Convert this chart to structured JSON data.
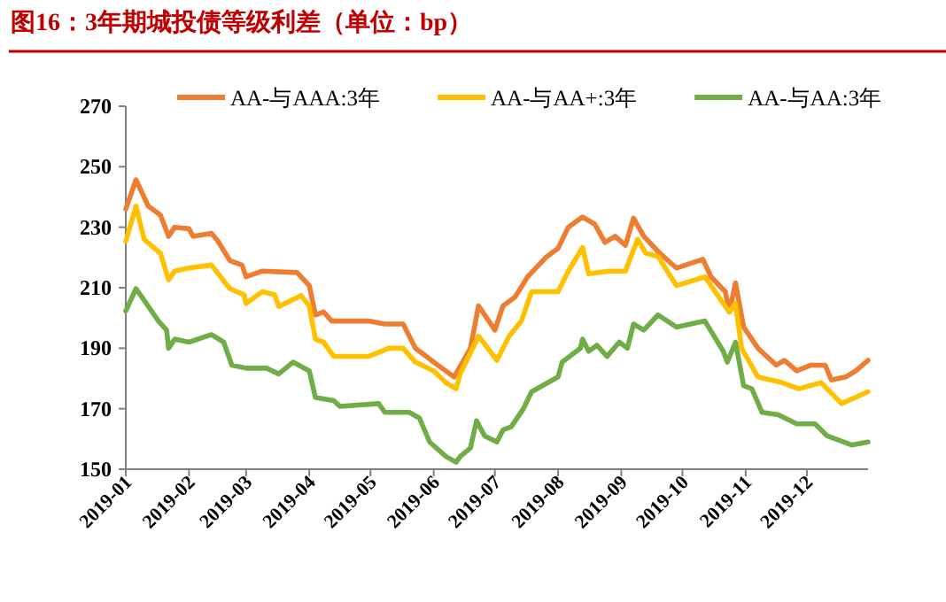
{
  "chart_data": {
    "type": "line",
    "title": "图16：3年期城投债等级利差（单位：bp）",
    "legend": "top",
    "marker": "none",
    "line_style": "solid",
    "grid": false,
    "xlim": [
      "2019-01-01",
      "2019-12-31"
    ],
    "xticks": [
      {
        "value": "2019-01-01",
        "label": "2019-01"
      },
      {
        "value": "2019-02-01",
        "label": "2019-02"
      },
      {
        "value": "2019-03-01",
        "label": "2019-03"
      },
      {
        "value": "2019-04-01",
        "label": "2019-04"
      },
      {
        "value": "2019-05-01",
        "label": "2019-05"
      },
      {
        "value": "2019-06-01",
        "label": "2019-06"
      },
      {
        "value": "2019-07-01",
        "label": "2019-07"
      },
      {
        "value": "2019-08-01",
        "label": "2019-08"
      },
      {
        "value": "2019-09-01",
        "label": "2019-09"
      },
      {
        "value": "2019-10-01",
        "label": "2019-10"
      },
      {
        "value": "2019-11-01",
        "label": "2019-11"
      },
      {
        "value": "2019-12-01",
        "label": "2019-12"
      }
    ],
    "ylim": [
      150,
      270
    ],
    "yticks": [
      150,
      170,
      190,
      210,
      230,
      250,
      270
    ],
    "series": [
      {
        "name": "AA-与AAA:3年",
        "color": "#ed7d31",
        "x": [
          "2019-01-01",
          "2019-01-06",
          "2019-01-12",
          "2019-01-18",
          "2019-01-22",
          "2019-01-25",
          "2019-02-01",
          "2019-02-03",
          "2019-02-12",
          "2019-02-15",
          "2019-02-21",
          "2019-02-27",
          "2019-03-01",
          "2019-03-09",
          "2019-03-26",
          "2019-04-01",
          "2019-04-04",
          "2019-04-08",
          "2019-04-12",
          "2019-04-30",
          "2019-05-08",
          "2019-05-17",
          "2019-05-23",
          "2019-06-01",
          "2019-06-11",
          "2019-06-19",
          "2019-06-23",
          "2019-07-01",
          "2019-07-05",
          "2019-07-11",
          "2019-07-17",
          "2019-07-26",
          "2019-08-01",
          "2019-08-06",
          "2019-08-13",
          "2019-08-19",
          "2019-08-24",
          "2019-08-29",
          "2019-09-03",
          "2019-09-07",
          "2019-09-12",
          "2019-09-19",
          "2019-09-28",
          "2019-10-11",
          "2019-10-15",
          "2019-10-22",
          "2019-10-24",
          "2019-10-27",
          "2019-10-31",
          "2019-11-07",
          "2019-11-16",
          "2019-11-20",
          "2019-11-26",
          "2019-12-03",
          "2019-12-10",
          "2019-12-13",
          "2019-12-20",
          "2019-12-25",
          "2019-12-31"
        ],
        "values": [
          236,
          245.7,
          237,
          234,
          227,
          230,
          229.5,
          227,
          228,
          225.6,
          219,
          217.5,
          213.6,
          215.5,
          215,
          210.7,
          201,
          202,
          199,
          199,
          198,
          198,
          190,
          185.4,
          180.5,
          190,
          204,
          196,
          204,
          207,
          213.6,
          220,
          223,
          230,
          233.4,
          231,
          225,
          227,
          224,
          233,
          227,
          222,
          216.5,
          219.4,
          213.6,
          208.7,
          202,
          211.6,
          197,
          190,
          184.4,
          186,
          182.5,
          184.4,
          184.4,
          179.5,
          180.5,
          182.5,
          186
        ]
      },
      {
        "name": "AA-与AA+:3年",
        "color": "#ffc000",
        "x": [
          "2019-01-01",
          "2019-01-06",
          "2019-01-10",
          "2019-01-18",
          "2019-01-22",
          "2019-01-25",
          "2019-02-01",
          "2019-02-12",
          "2019-02-21",
          "2019-02-28",
          "2019-03-01",
          "2019-03-09",
          "2019-03-15",
          "2019-03-17",
          "2019-03-28",
          "2019-04-01",
          "2019-04-04",
          "2019-04-08",
          "2019-04-13",
          "2019-04-30",
          "2019-05-10",
          "2019-05-17",
          "2019-05-23",
          "2019-06-01",
          "2019-06-07",
          "2019-06-12",
          "2019-06-14",
          "2019-06-23",
          "2019-07-02",
          "2019-07-08",
          "2019-07-14",
          "2019-07-19",
          "2019-08-01",
          "2019-08-06",
          "2019-08-13",
          "2019-08-16",
          "2019-08-26",
          "2019-09-03",
          "2019-09-09",
          "2019-09-13",
          "2019-09-19",
          "2019-09-28",
          "2019-10-12",
          "2019-10-21",
          "2019-10-24",
          "2019-10-27",
          "2019-10-30",
          "2019-11-07",
          "2019-11-19",
          "2019-11-27",
          "2019-12-08",
          "2019-12-18",
          "2019-12-31"
        ],
        "values": [
          225.3,
          237,
          226,
          221.4,
          212.6,
          215.5,
          216.5,
          217.5,
          209.7,
          207.7,
          204.8,
          208.7,
          207.7,
          203.8,
          207.4,
          203.8,
          193,
          192,
          187.3,
          187.3,
          190,
          190,
          185.4,
          182.5,
          178.6,
          176.6,
          181.5,
          194,
          186,
          194,
          199,
          208.7,
          208.7,
          215.5,
          223.3,
          214.6,
          215.5,
          215.5,
          226,
          221.4,
          220.4,
          210.7,
          213.6,
          204.8,
          202,
          204.8,
          190,
          180.5,
          178.6,
          176.6,
          178.6,
          171.7,
          175.6
        ]
      },
      {
        "name": "AA-与AA:3年",
        "color": "#70ad47",
        "x": [
          "2019-01-01",
          "2019-01-06",
          "2019-01-09",
          "2019-01-17",
          "2019-01-21",
          "2019-01-22",
          "2019-01-25",
          "2019-02-01",
          "2019-02-12",
          "2019-02-18",
          "2019-02-22",
          "2019-03-01",
          "2019-03-11",
          "2019-03-17",
          "2019-03-24",
          "2019-04-01",
          "2019-04-04",
          "2019-04-13",
          "2019-04-16",
          "2019-05-05",
          "2019-05-08",
          "2019-05-20",
          "2019-05-25",
          "2019-05-30",
          "2019-06-07",
          "2019-06-12",
          "2019-06-14",
          "2019-06-19",
          "2019-06-22",
          "2019-06-26",
          "2019-07-02",
          "2019-07-05",
          "2019-07-09",
          "2019-07-15",
          "2019-07-19",
          "2019-08-01",
          "2019-08-03",
          "2019-08-12",
          "2019-08-13",
          "2019-08-16",
          "2019-08-20",
          "2019-08-25",
          "2019-08-31",
          "2019-09-04",
          "2019-09-07",
          "2019-09-12",
          "2019-09-19",
          "2019-09-28",
          "2019-10-12",
          "2019-10-21",
          "2019-10-23",
          "2019-10-27",
          "2019-10-31",
          "2019-11-04",
          "2019-11-09",
          "2019-11-17",
          "2019-11-26",
          "2019-12-05",
          "2019-12-11",
          "2019-12-23",
          "2019-12-31"
        ],
        "values": [
          202.3,
          209.7,
          206.8,
          199,
          196,
          190,
          193,
          192,
          194.5,
          192,
          184.4,
          183.4,
          183.4,
          181.5,
          185.4,
          182.5,
          173.7,
          172.7,
          170.8,
          171.7,
          168.8,
          168.8,
          166.9,
          159,
          154.2,
          152.3,
          154.2,
          157,
          166,
          161,
          159,
          163,
          164,
          170,
          175.6,
          180.5,
          185.4,
          190,
          193,
          189,
          191,
          187.3,
          192,
          190,
          198,
          196,
          201,
          197,
          199,
          189,
          185.4,
          192,
          177.6,
          176.6,
          168.8,
          168,
          165,
          165,
          161,
          158,
          159
        ]
      }
    ]
  }
}
